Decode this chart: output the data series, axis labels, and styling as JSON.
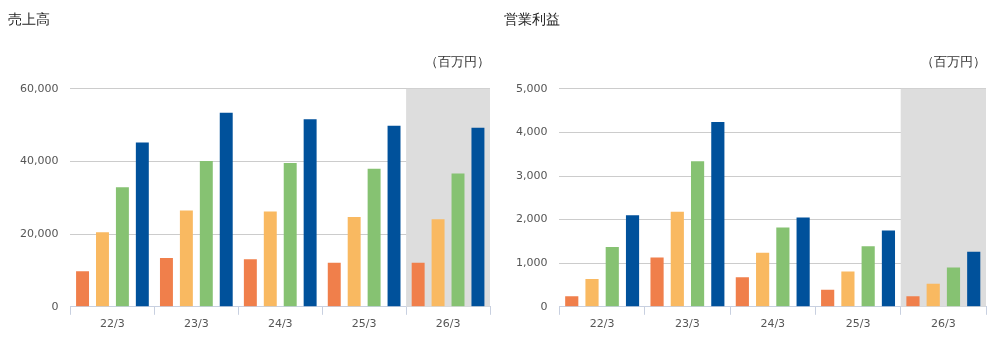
{
  "chart_data": [
    {
      "type": "bar",
      "title": "売上高",
      "ylabel": "（百万円）",
      "categories": [
        "22/3",
        "23/3",
        "24/3",
        "25/3",
        "26/3"
      ],
      "series": [
        {
          "color": "#f07f4b",
          "values": [
            9800,
            13400,
            13100,
            12100,
            12100
          ]
        },
        {
          "color": "#f9b961",
          "values": [
            20500,
            26500,
            26200,
            24700,
            24100
          ]
        },
        {
          "color": "#86c272",
          "values": [
            32900,
            40100,
            39600,
            38000,
            36700
          ]
        },
        {
          "color": "#00519b",
          "values": [
            45200,
            53400,
            51600,
            49800,
            49300
          ]
        }
      ],
      "ylim": [
        0,
        60000
      ],
      "yticks": [
        {
          "value": 0,
          "label": "0"
        },
        {
          "value": 20000,
          "label": "20,000"
        },
        {
          "value": 40000,
          "label": "40,000"
        },
        {
          "value": 60000,
          "label": "60,000"
        }
      ],
      "grid": "y",
      "bands": [
        {
          "axis": "x",
          "from": "26/3",
          "to": "26/3",
          "color": "#dddddd"
        }
      ]
    },
    {
      "type": "bar",
      "title": "営業利益",
      "ylabel": "（百万円）",
      "categories": [
        "22/3",
        "23/3",
        "24/3",
        "25/3",
        "26/3"
      ],
      "series": [
        {
          "color": "#f07f4b",
          "values": [
            240,
            1130,
            680,
            390,
            240
          ]
        },
        {
          "color": "#f9b961",
          "values": [
            640,
            2180,
            1240,
            810,
            530
          ]
        },
        {
          "color": "#86c272",
          "values": [
            1370,
            3340,
            1820,
            1390,
            900
          ]
        },
        {
          "color": "#00519b",
          "values": [
            2100,
            4240,
            2050,
            1750,
            1260
          ]
        }
      ],
      "ylim": [
        0,
        5000
      ],
      "yticks": [
        {
          "value": 0,
          "label": "0"
        },
        {
          "value": 1000,
          "label": "1,000"
        },
        {
          "value": 2000,
          "label": "2,000"
        },
        {
          "value": 3000,
          "label": "3,000"
        },
        {
          "value": 4000,
          "label": "4,000"
        },
        {
          "value": 5000,
          "label": "5,000"
        }
      ],
      "grid": "y",
      "bands": [
        {
          "axis": "x",
          "from": "26/3",
          "to": "26/3",
          "color": "#dddddd"
        }
      ]
    }
  ]
}
